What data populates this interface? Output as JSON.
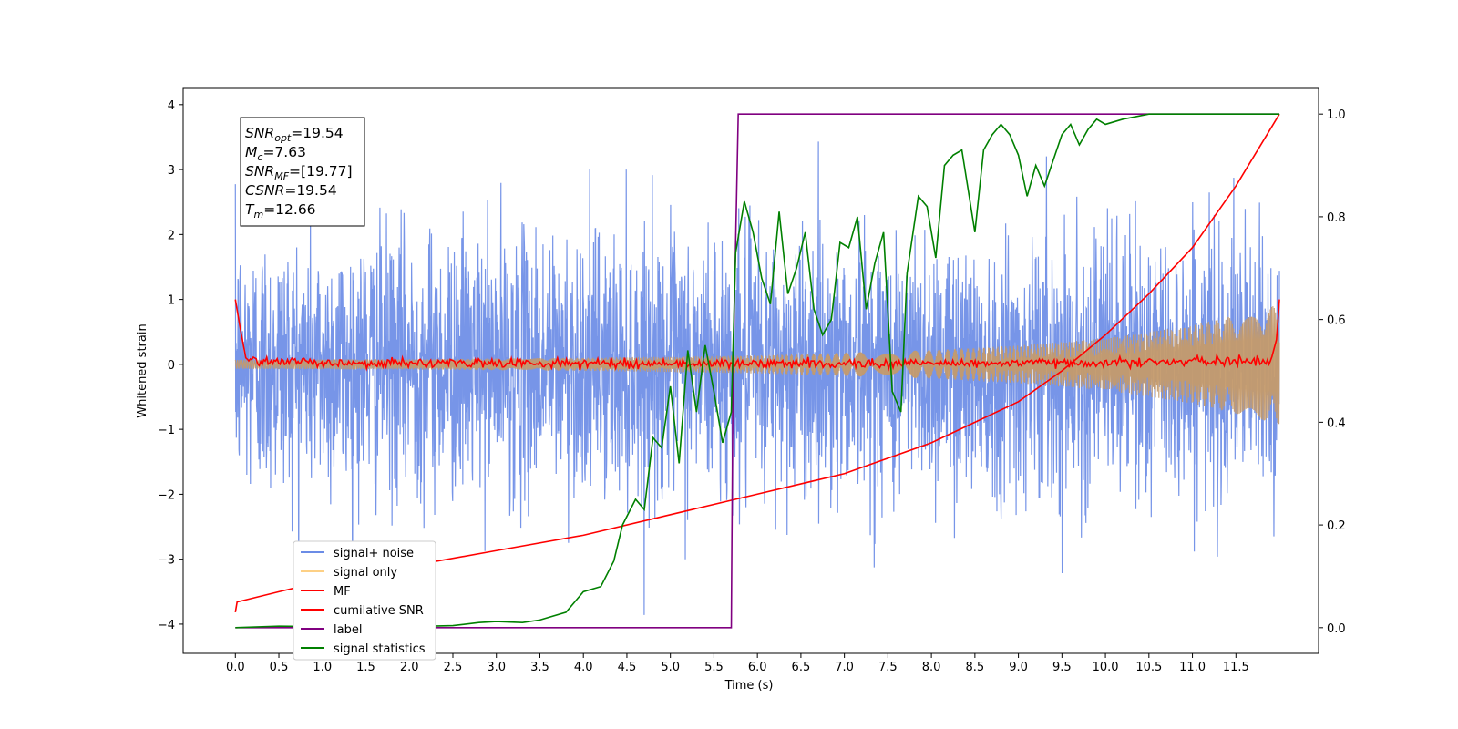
{
  "chart_data": {
    "type": "line",
    "title": "",
    "xlabel": "Time (s)",
    "ylabel": "Whitened strain",
    "xlim": [
      -0.6,
      12.45
    ],
    "ylim": [
      -4.45,
      4.25
    ],
    "ylim_right": [
      -0.05,
      1.05
    ],
    "x_ticks": [
      0.0,
      0.5,
      1.0,
      1.5,
      2.0,
      2.5,
      3.0,
      3.5,
      4.0,
      4.5,
      5.0,
      5.5,
      6.0,
      6.5,
      7.0,
      7.5,
      8.0,
      8.5,
      9.0,
      9.5,
      10.0,
      10.5,
      11.0,
      11.5
    ],
    "x_tick_labels": [
      "0.0",
      "0.5",
      "1.0",
      "1.5",
      "2.0",
      "2.5",
      "3.0",
      "3.5",
      "4.0",
      "4.5",
      "5.0",
      "5.5",
      "6.0",
      "6.5",
      "7.0",
      "7.5",
      "8.0",
      "8.5",
      "9.0",
      "9.5",
      "10.0",
      "10.5",
      "11.0",
      "11.5"
    ],
    "y_ticks": [
      -4,
      -3,
      -2,
      -1,
      0,
      1,
      2,
      3,
      4
    ],
    "y_tick_labels": [
      "−4",
      "−3",
      "−2",
      "−1",
      "0",
      "1",
      "2",
      "3",
      "4"
    ],
    "y_right_ticks": [
      0.0,
      0.2,
      0.4,
      0.6,
      0.8,
      1.0
    ],
    "y_right_tick_labels": [
      "0.0",
      "0.2",
      "0.4",
      "0.6",
      "0.8",
      "1.0"
    ],
    "grid": false,
    "legend_position": "bottom-left",
    "annotation": {
      "lines": [
        {
          "base": "SNR",
          "sub": "opt",
          "value": "=19.54"
        },
        {
          "base": "M",
          "sub": "c",
          "value": "=7.63"
        },
        {
          "base": "SNR",
          "sub": "MF",
          "value": "=[19.77]"
        },
        {
          "base": "CSNR",
          "sub": "",
          "value": "=19.54"
        },
        {
          "base": "T",
          "sub": "m",
          "value": "=12.66"
        }
      ]
    },
    "series": [
      {
        "name": "signal+ noise",
        "color": "#6b8ce6",
        "axis": "left",
        "kind": "noise_band",
        "x_range": [
          0.0,
          12.0
        ],
        "typical_amplitude": 1.0,
        "max_abs": 4.15
      },
      {
        "name": "signal only",
        "color": "#fdd085",
        "axis": "left",
        "kind": "chirp_envelope",
        "x": [
          0.0,
          2.0,
          4.0,
          6.0,
          8.0,
          9.0,
          10.0,
          11.0,
          12.0
        ],
        "envelope": [
          0.07,
          0.08,
          0.1,
          0.14,
          0.22,
          0.29,
          0.4,
          0.6,
          0.92
        ]
      },
      {
        "name": "MF",
        "color": "#ff0000",
        "axis": "left",
        "kind": "matched_filter",
        "x": [
          0.0,
          0.05,
          0.12,
          0.3,
          1.0,
          3.0,
          6.0,
          9.0,
          11.9,
          11.97,
          12.0
        ],
        "y": [
          1.0,
          0.6,
          0.1,
          0.05,
          0.02,
          0.02,
          0.01,
          0.02,
          0.05,
          0.4,
          1.0
        ]
      },
      {
        "name": "cumilative SNR",
        "color": "#ff0000",
        "axis": "right",
        "x": [
          0.0,
          0.02,
          0.5,
          1.0,
          2.0,
          3.0,
          4.0,
          5.0,
          6.0,
          7.0,
          8.0,
          8.5,
          9.0,
          9.5,
          10.0,
          10.5,
          11.0,
          11.5,
          12.0
        ],
        "y": [
          0.03,
          0.05,
          0.07,
          0.09,
          0.12,
          0.15,
          0.18,
          0.22,
          0.26,
          0.3,
          0.36,
          0.4,
          0.44,
          0.5,
          0.57,
          0.65,
          0.74,
          0.86,
          1.0
        ]
      },
      {
        "name": "label",
        "color": "#800080",
        "axis": "right",
        "x": [
          0.0,
          5.7,
          5.72,
          5.78,
          12.0
        ],
        "y": [
          0.0,
          0.0,
          0.5,
          1.0,
          1.0
        ]
      },
      {
        "name": "signal statistics",
        "color": "#008000",
        "axis": "right",
        "x": [
          0.0,
          0.5,
          1.0,
          1.5,
          2.0,
          2.5,
          2.8,
          3.0,
          3.3,
          3.5,
          3.8,
          4.0,
          4.2,
          4.35,
          4.45,
          4.6,
          4.7,
          4.8,
          4.9,
          5.0,
          5.1,
          5.2,
          5.3,
          5.4,
          5.5,
          5.6,
          5.65,
          5.7,
          5.75,
          5.85,
          5.95,
          6.05,
          6.15,
          6.25,
          6.35,
          6.45,
          6.55,
          6.65,
          6.75,
          6.85,
          6.95,
          7.05,
          7.15,
          7.25,
          7.35,
          7.45,
          7.55,
          7.65,
          7.72,
          7.85,
          7.95,
          8.05,
          8.15,
          8.25,
          8.35,
          8.5,
          8.6,
          8.7,
          8.8,
          8.9,
          9.0,
          9.1,
          9.2,
          9.3,
          9.4,
          9.5,
          9.6,
          9.7,
          9.8,
          9.9,
          10.0,
          10.2,
          10.5,
          11.0,
          11.5,
          12.0
        ],
        "y": [
          0.0,
          0.003,
          0.002,
          0.001,
          0.002,
          0.004,
          0.01,
          0.012,
          0.01,
          0.015,
          0.03,
          0.07,
          0.08,
          0.13,
          0.2,
          0.25,
          0.23,
          0.37,
          0.35,
          0.47,
          0.32,
          0.54,
          0.42,
          0.55,
          0.46,
          0.36,
          0.39,
          0.42,
          0.73,
          0.83,
          0.77,
          0.68,
          0.63,
          0.81,
          0.65,
          0.7,
          0.77,
          0.62,
          0.57,
          0.6,
          0.75,
          0.74,
          0.8,
          0.62,
          0.71,
          0.77,
          0.46,
          0.42,
          0.69,
          0.84,
          0.82,
          0.72,
          0.9,
          0.92,
          0.93,
          0.77,
          0.93,
          0.96,
          0.98,
          0.96,
          0.92,
          0.84,
          0.9,
          0.86,
          0.91,
          0.96,
          0.98,
          0.94,
          0.97,
          0.99,
          0.98,
          0.99,
          1.0,
          1.0,
          1.0,
          1.0
        ]
      }
    ]
  }
}
